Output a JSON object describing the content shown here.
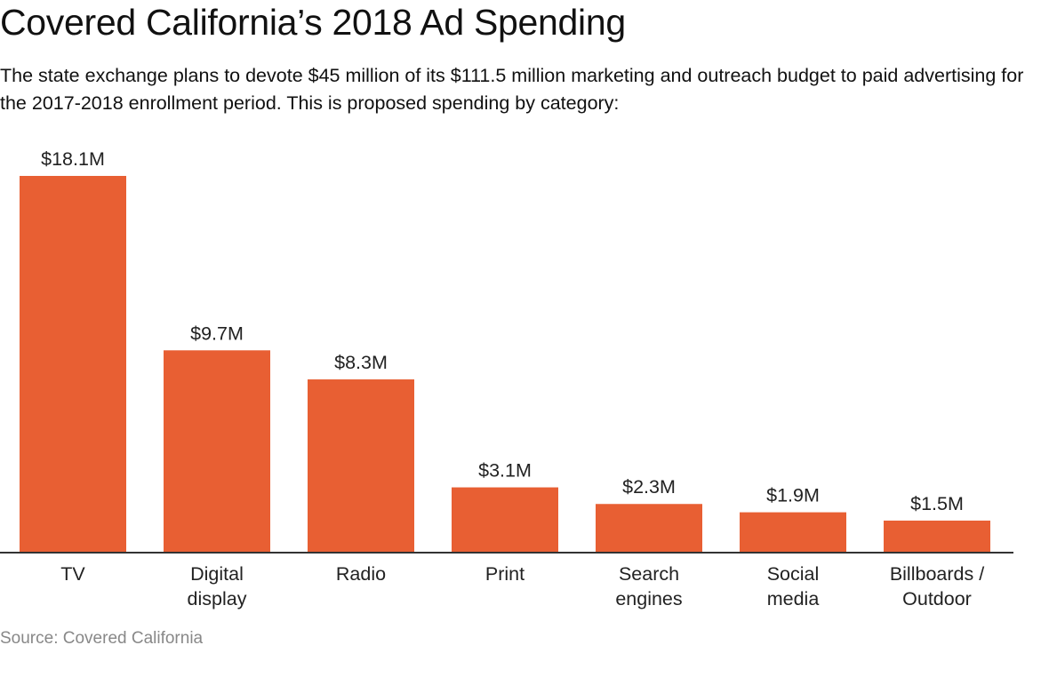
{
  "chart_data": {
    "type": "bar",
    "title": "Covered California’s 2018 Ad Spending",
    "subtitle": "The state exchange plans to devote $45 million of its $111.5 million marketing and outreach budget to paid advertising for the 2017-2018 enrollment period. This is proposed spending by category:",
    "categories": [
      [
        "TV"
      ],
      [
        "Digital",
        "display"
      ],
      [
        "Radio"
      ],
      [
        "Print"
      ],
      [
        "Search",
        "engines"
      ],
      [
        "Social",
        "media"
      ],
      [
        "Billboards /",
        "Outdoor"
      ]
    ],
    "values": [
      18.1,
      9.7,
      8.3,
      3.1,
      2.3,
      1.9,
      1.5
    ],
    "value_labels": [
      "$18.1M",
      "$9.7M",
      "$8.3M",
      "$3.1M",
      "$2.3M",
      "$1.9M",
      "$1.5M"
    ],
    "unit": "million USD",
    "xlabel": "",
    "ylabel": "",
    "ylim": [
      0,
      18.1
    ],
    "grid": false,
    "legend": "none",
    "bar_color": "#e85f33",
    "axis_color": "#333333",
    "source": "Source: Covered California"
  }
}
